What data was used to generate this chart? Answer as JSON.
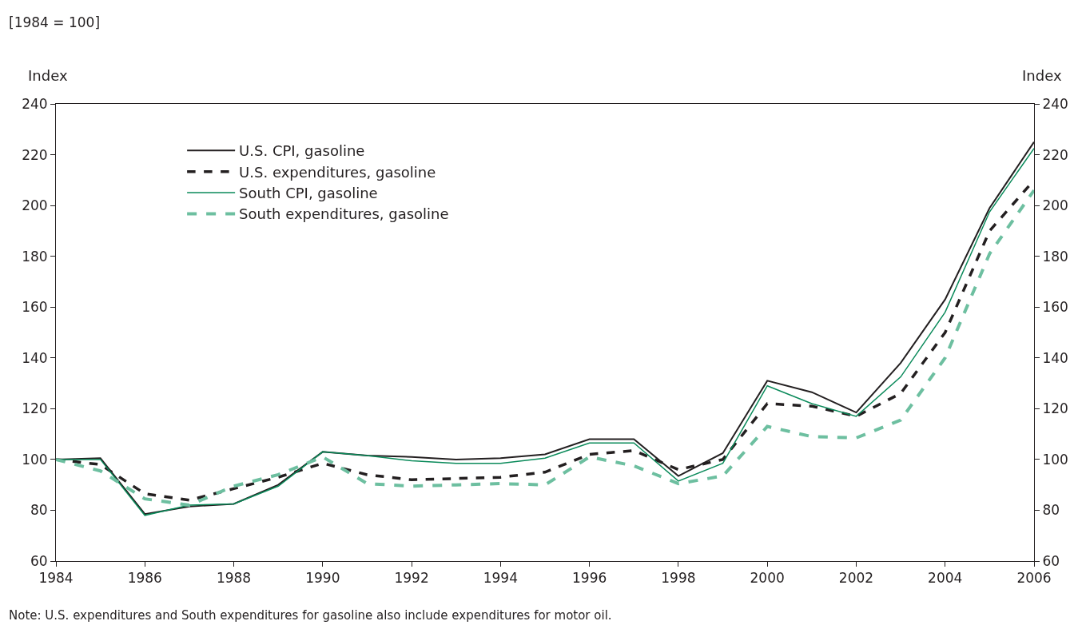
{
  "chart_data": {
    "type": "line",
    "subtitle": "[1984 = 100]",
    "ylabel": "Index",
    "y2label": "Index",
    "x": [
      1984,
      1985,
      1986,
      1987,
      1988,
      1989,
      1990,
      1991,
      1992,
      1993,
      1994,
      1995,
      1996,
      1997,
      1998,
      1999,
      2000,
      2001,
      2002,
      2003,
      2004,
      2005,
      2006
    ],
    "series": [
      {
        "name": "U.S. CPI, gasoline",
        "color": "#231f20",
        "line_style": "solid",
        "values": [
          100,
          100.5,
          78.5,
          81.5,
          82.5,
          90,
          103,
          101.5,
          101,
          100,
          100.5,
          102,
          108,
          108,
          93.5,
          102.5,
          131,
          126.5,
          118.5,
          138,
          163,
          199,
          225
        ]
      },
      {
        "name": "U.S. expenditures, gasoline",
        "color": "#231f20",
        "line_style": "dashed",
        "values": [
          100,
          98,
          86.5,
          84,
          88.5,
          93,
          98.5,
          94,
          92,
          92.5,
          93,
          95,
          102,
          103.5,
          96,
          100,
          122,
          121,
          117,
          126,
          150,
          190,
          210
        ]
      },
      {
        "name": "South CPI, gasoline",
        "color": "#0a8a5a",
        "line_style": "solid",
        "values": [
          100,
          100,
          78,
          82,
          82.5,
          89.5,
          103,
          101.5,
          99.5,
          98.5,
          98.5,
          100.5,
          106.5,
          106.5,
          91.5,
          98.5,
          129,
          122,
          117,
          132.5,
          158,
          197.5,
          222.5
        ]
      },
      {
        "name": "South expenditures, gasoline",
        "color": "#6dbfa0",
        "line_style": "dashed",
        "values": [
          100,
          95.5,
          84.5,
          82,
          89.5,
          94,
          101,
          90.5,
          89.5,
          90,
          90.5,
          90,
          101,
          97.5,
          90.5,
          93.5,
          113,
          109,
          108.5,
          115.5,
          140,
          181,
          206
        ]
      }
    ],
    "xlim": [
      1984,
      2006
    ],
    "xticks": [
      1984,
      1986,
      1988,
      1990,
      1992,
      1994,
      1996,
      1998,
      2000,
      2002,
      2004,
      2006
    ],
    "ylim": [
      60,
      240
    ],
    "yticks": [
      60,
      80,
      100,
      120,
      140,
      160,
      180,
      200,
      220,
      240
    ],
    "y2lim": [
      60,
      240
    ],
    "y2ticks": [
      60,
      80,
      100,
      120,
      140,
      160,
      180,
      200,
      220,
      240
    ],
    "grid": false,
    "legend": "top left",
    "marker": "none",
    "annotations": [
      "Note: U.S. expenditures and South expenditures for gasoline also include expenditures for motor oil."
    ]
  }
}
